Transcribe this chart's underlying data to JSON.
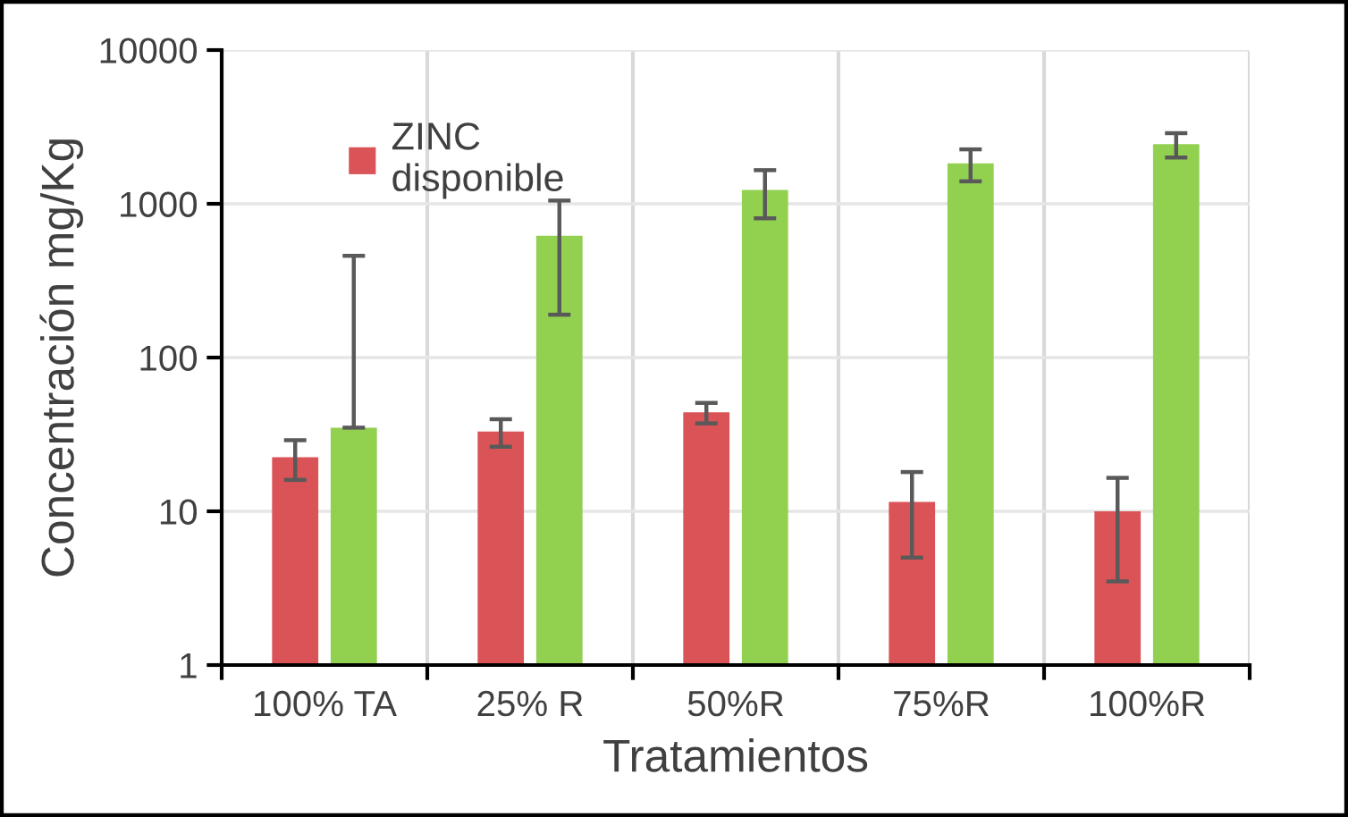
{
  "chart_data": {
    "type": "bar",
    "xlabel": "Tratamientos",
    "ylabel": "Concentración mg/Kg",
    "categories": [
      "100% TA",
      "25% R",
      "50%R",
      "75%R",
      "100%R"
    ],
    "series": [
      {
        "name": "ZINC disponible",
        "color": "#da5356",
        "values": [
          22.5,
          33,
          44,
          11.5,
          10
        ],
        "errors": [
          6.5,
          6.7,
          6.7,
          6.5,
          6.5
        ]
      },
      {
        "color": "#92d050",
        "values": [
          35,
          620,
          1230,
          1830,
          2440
        ],
        "errors": [
          424,
          430,
          425,
          430,
          440
        ]
      }
    ],
    "ylim": [
      1,
      10000
    ],
    "yticks": [
      1,
      10,
      100,
      1000,
      10000
    ],
    "log": true,
    "grid": true,
    "legend": "top left"
  }
}
